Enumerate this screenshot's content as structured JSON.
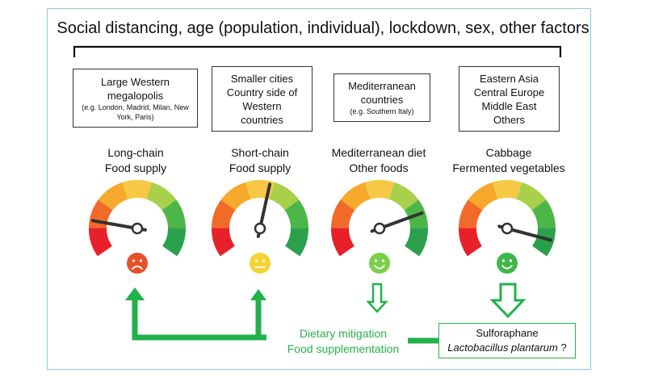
{
  "title": "Social distancing, age (population, individual), lockdown, sex, other factors",
  "regions": [
    {
      "lines": [
        "Large Western",
        "megalopolis"
      ],
      "note": "(e.g. London, Madrid, Milan, New York, Paris)",
      "food": [
        "Long-chain",
        "Food supply"
      ],
      "needle_level": 0.18,
      "face": "sad",
      "face_color": "#e8502a"
    },
    {
      "lines": [
        "Smaller cities",
        "Country side of",
        "Western",
        "countries"
      ],
      "note": "",
      "food": [
        "Short-chain",
        "Food supply"
      ],
      "needle_level": 0.55,
      "face": "neutral",
      "face_color": "#f5d333"
    },
    {
      "lines": [
        "Mediterranean",
        "countries"
      ],
      "note": "(e.g. Southern Italy)",
      "food": [
        "Mediterranean diet",
        "Other foods"
      ],
      "needle_level": 0.78,
      "face": "happy",
      "face_color": "#7bd04a"
    },
    {
      "lines": [
        "Eastern Asia",
        "Central Europe",
        "Middle East",
        "Others"
      ],
      "note": "",
      "food": [
        "Cabbage",
        "Fermented vegetables"
      ],
      "needle_level": 0.92,
      "face": "happy",
      "face_color": "#3fb84a"
    }
  ],
  "mitigation": [
    "Dietary mitigation",
    "Food supplementation"
  ],
  "supplement": {
    "line1": "Sulforaphane",
    "line2_italic": "Lactobacillus plantarum",
    "line2_suffix": " ?"
  },
  "colors": {
    "arrow_green": "#21b24b",
    "text_green": "#2bb04a"
  }
}
